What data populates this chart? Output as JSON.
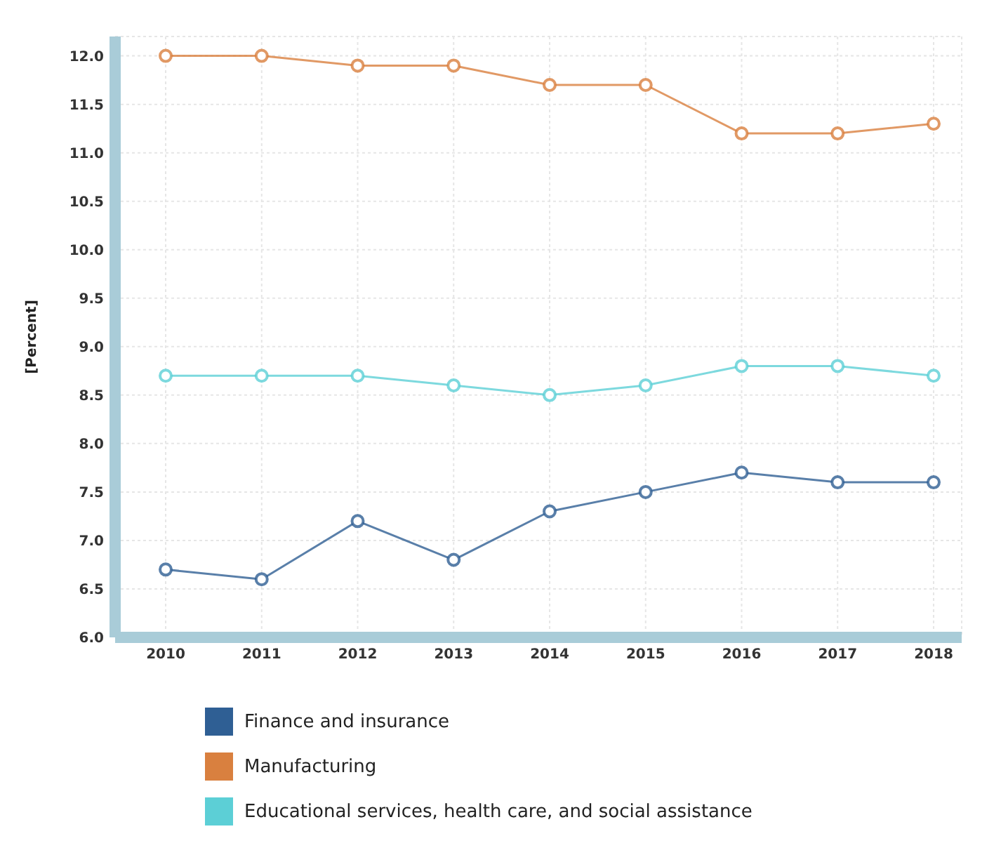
{
  "chart_data": {
    "type": "line",
    "ylabel": "[Percent]",
    "categories": [
      "2010",
      "2011",
      "2012",
      "2013",
      "2014",
      "2015",
      "2016",
      "2017",
      "2018"
    ],
    "series": [
      {
        "name": "Finance and insurance",
        "color": "#2f5f94",
        "values": [
          6.7,
          6.6,
          7.2,
          6.8,
          7.3,
          7.5,
          7.7,
          7.6,
          7.6
        ]
      },
      {
        "name": "Manufacturing",
        "color": "#d9803f",
        "values": [
          12.0,
          12.0,
          11.9,
          11.9,
          11.7,
          11.7,
          11.2,
          11.2,
          11.3
        ]
      },
      {
        "name": "Educational services, health care, and social assistance",
        "color": "#5ccfd6",
        "values": [
          8.7,
          8.7,
          8.7,
          8.6,
          8.5,
          8.6,
          8.8,
          8.8,
          8.7
        ]
      }
    ],
    "ylim": [
      6.0,
      12.2
    ],
    "yticks": [
      {
        "value": 6,
        "label": "6.0"
      },
      6.5,
      {
        "value": 7,
        "label": "7.0"
      },
      7.5,
      {
        "value": 8,
        "label": "8.0"
      },
      8.5,
      {
        "value": 9,
        "label": "9.0"
      },
      9.5,
      {
        "value": 10,
        "label": "10.0"
      },
      10.5,
      {
        "value": 11,
        "label": "11.0"
      },
      11.5,
      {
        "value": 12,
        "label": "12.0"
      }
    ],
    "grid": true,
    "legend": "bottom left",
    "marker": "circle",
    "line_style": "solid"
  }
}
